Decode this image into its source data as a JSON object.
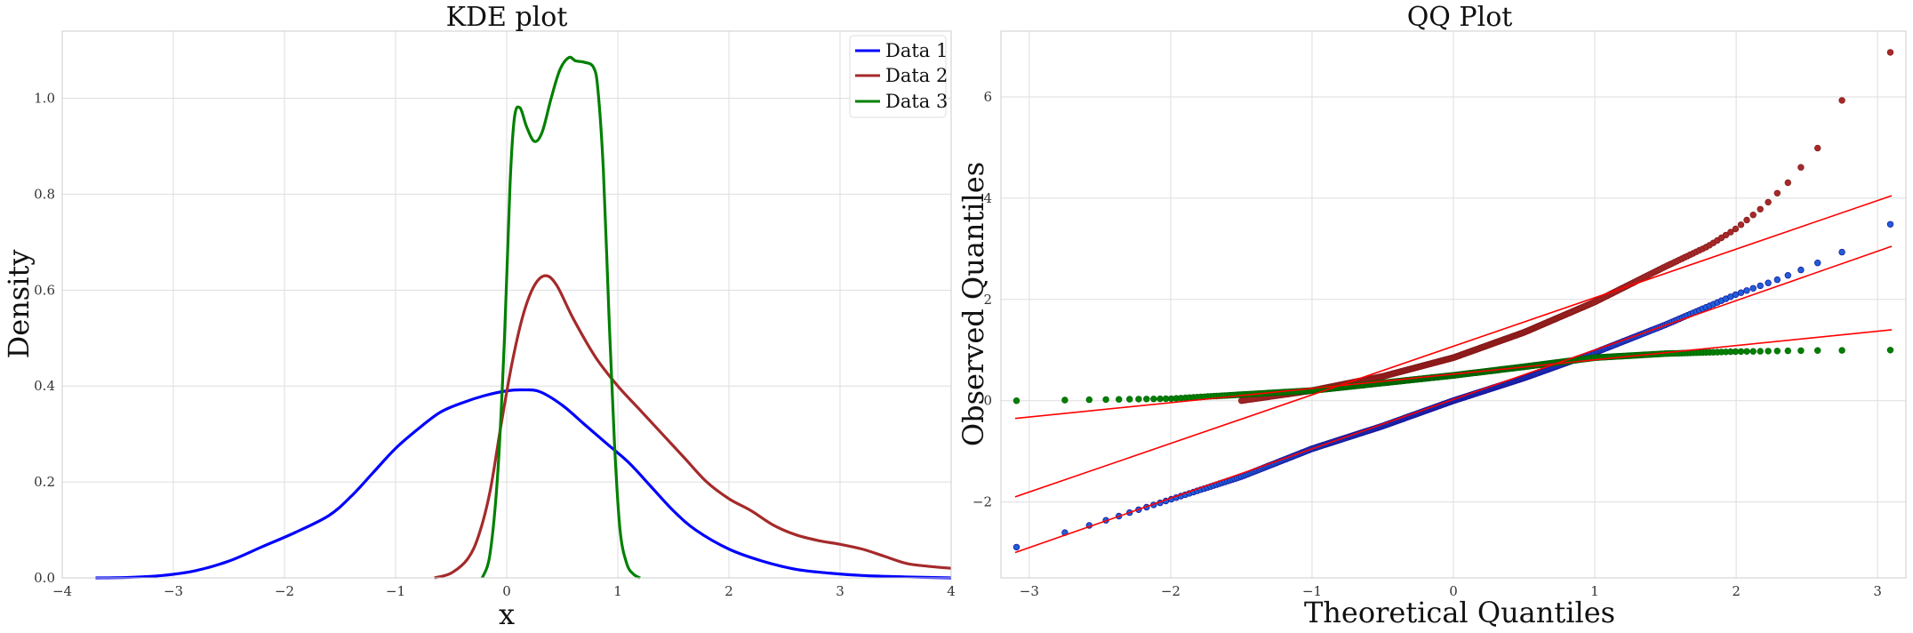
{
  "chart_data": [
    {
      "type": "line",
      "title": "KDE plot",
      "xlabel": "x",
      "ylabel": "Density",
      "xlim": [
        -4,
        4
      ],
      "ylim": [
        0,
        1.14
      ],
      "xticks": [
        "−4",
        "−3",
        "−2",
        "−1",
        "0",
        "1",
        "2",
        "3",
        "4"
      ],
      "yticks": [
        "0.0",
        "0.2",
        "0.4",
        "0.6",
        "0.8",
        "1.0"
      ],
      "grid": true,
      "legend": "top-right",
      "series": [
        {
          "name": "Data 1",
          "color": "#0000ff",
          "x": [
            -3.7,
            -3.4,
            -3.1,
            -2.8,
            -2.5,
            -2.2,
            -1.9,
            -1.6,
            -1.4,
            -1.2,
            -1.0,
            -0.8,
            -0.6,
            -0.4,
            -0.2,
            0.0,
            0.15,
            0.3,
            0.5,
            0.7,
            0.9,
            1.1,
            1.3,
            1.5,
            1.7,
            2.0,
            2.3,
            2.6,
            2.9,
            3.2,
            3.6,
            4.0
          ],
          "y": [
            0.0,
            0.001,
            0.005,
            0.015,
            0.035,
            0.065,
            0.095,
            0.13,
            0.17,
            0.22,
            0.27,
            0.31,
            0.345,
            0.365,
            0.38,
            0.39,
            0.392,
            0.388,
            0.36,
            0.32,
            0.28,
            0.24,
            0.19,
            0.14,
            0.1,
            0.06,
            0.035,
            0.018,
            0.01,
            0.005,
            0.002,
            0.0
          ]
        },
        {
          "name": "Data 2",
          "color": "#a52a2a",
          "x": [
            -0.65,
            -0.5,
            -0.35,
            -0.25,
            -0.15,
            -0.05,
            0.05,
            0.15,
            0.25,
            0.35,
            0.45,
            0.6,
            0.8,
            1.0,
            1.2,
            1.4,
            1.6,
            1.8,
            2.0,
            2.2,
            2.4,
            2.6,
            2.8,
            3.0,
            3.2,
            3.4,
            3.6,
            3.8,
            4.0
          ],
          "y": [
            0.0,
            0.01,
            0.04,
            0.09,
            0.18,
            0.32,
            0.45,
            0.55,
            0.61,
            0.63,
            0.61,
            0.54,
            0.46,
            0.4,
            0.35,
            0.3,
            0.25,
            0.2,
            0.165,
            0.14,
            0.11,
            0.09,
            0.078,
            0.07,
            0.06,
            0.045,
            0.03,
            0.024,
            0.02
          ]
        },
        {
          "name": "Data 3",
          "color": "#008000",
          "x": [
            -0.22,
            -0.15,
            -0.08,
            -0.02,
            0.03,
            0.07,
            0.12,
            0.18,
            0.25,
            0.32,
            0.4,
            0.48,
            0.56,
            0.62,
            0.7,
            0.78,
            0.82,
            0.87,
            0.92,
            0.97,
            1.02,
            1.08,
            1.14,
            1.2
          ],
          "y": [
            0.0,
            0.05,
            0.22,
            0.5,
            0.82,
            0.96,
            0.98,
            0.94,
            0.91,
            0.93,
            1.0,
            1.06,
            1.085,
            1.078,
            1.075,
            1.065,
            1.02,
            0.85,
            0.55,
            0.28,
            0.1,
            0.03,
            0.008,
            0.0
          ]
        }
      ]
    },
    {
      "type": "scatter",
      "title": "QQ Plot",
      "xlabel": "Theoretical Quantiles",
      "ylabel": "Observed Quantiles",
      "xlim": [
        -3.2,
        3.2
      ],
      "ylim": [
        -3.5,
        7.3
      ],
      "xticks": [
        "−3",
        "−2",
        "−1",
        "0",
        "1",
        "2",
        "3"
      ],
      "yticks": [
        "−2",
        "0",
        "2",
        "4",
        "6"
      ],
      "grid": true,
      "series": [
        {
          "color": "#1f5fd8",
          "edge": "#1a1aa0",
          "x_range": [
            -3.1,
            3.1
          ],
          "points_curve": [
            [
              -3.1,
              -2.9
            ],
            [
              -2.5,
              -2.4
            ],
            [
              -2.0,
              -1.95
            ],
            [
              -1.5,
              -1.5
            ],
            [
              -1.0,
              -0.95
            ],
            [
              -0.5,
              -0.5
            ],
            [
              0.0,
              0.0
            ],
            [
              0.5,
              0.45
            ],
            [
              1.0,
              0.95
            ],
            [
              1.5,
              1.5
            ],
            [
              2.0,
              2.1
            ],
            [
              2.3,
              2.4
            ],
            [
              2.6,
              2.75
            ],
            [
              2.8,
              3.0
            ],
            [
              3.1,
              3.5
            ]
          ],
          "fit_line": [
            [
              -3.1,
              -3.0
            ],
            [
              3.1,
              3.05
            ]
          ]
        },
        {
          "color": "#a52a2a",
          "edge": "#8b1a1a",
          "x_range": [
            -1.5,
            3.1
          ],
          "points_curve": [
            [
              -1.5,
              0.0
            ],
            [
              -1.0,
              0.2
            ],
            [
              -0.5,
              0.48
            ],
            [
              0.0,
              0.85
            ],
            [
              0.5,
              1.35
            ],
            [
              1.0,
              1.95
            ],
            [
              1.5,
              2.65
            ],
            [
              1.8,
              3.05
            ],
            [
              2.0,
              3.4
            ],
            [
              2.2,
              3.85
            ],
            [
              2.4,
              4.4
            ],
            [
              2.55,
              4.95
            ],
            [
              2.65,
              5.1
            ],
            [
              2.75,
              5.95
            ],
            [
              2.85,
              6.05
            ],
            [
              2.95,
              6.6
            ],
            [
              3.1,
              6.9
            ]
          ],
          "fit_line": [
            [
              -3.1,
              -1.9
            ],
            [
              3.1,
              4.05
            ]
          ]
        },
        {
          "color": "#008000",
          "edge": "#006400",
          "x_range": [
            -3.1,
            3.1
          ],
          "points_curve": [
            [
              -3.1,
              0.0
            ],
            [
              -2.0,
              0.04
            ],
            [
              -1.0,
              0.2
            ],
            [
              -0.5,
              0.35
            ],
            [
              0.0,
              0.5
            ],
            [
              0.5,
              0.67
            ],
            [
              1.0,
              0.85
            ],
            [
              1.5,
              0.93
            ],
            [
              2.0,
              0.97
            ],
            [
              2.5,
              0.99
            ],
            [
              3.1,
              1.0
            ]
          ],
          "fit_line": [
            [
              -3.1,
              -0.35
            ],
            [
              3.1,
              1.4
            ]
          ]
        }
      ]
    }
  ]
}
